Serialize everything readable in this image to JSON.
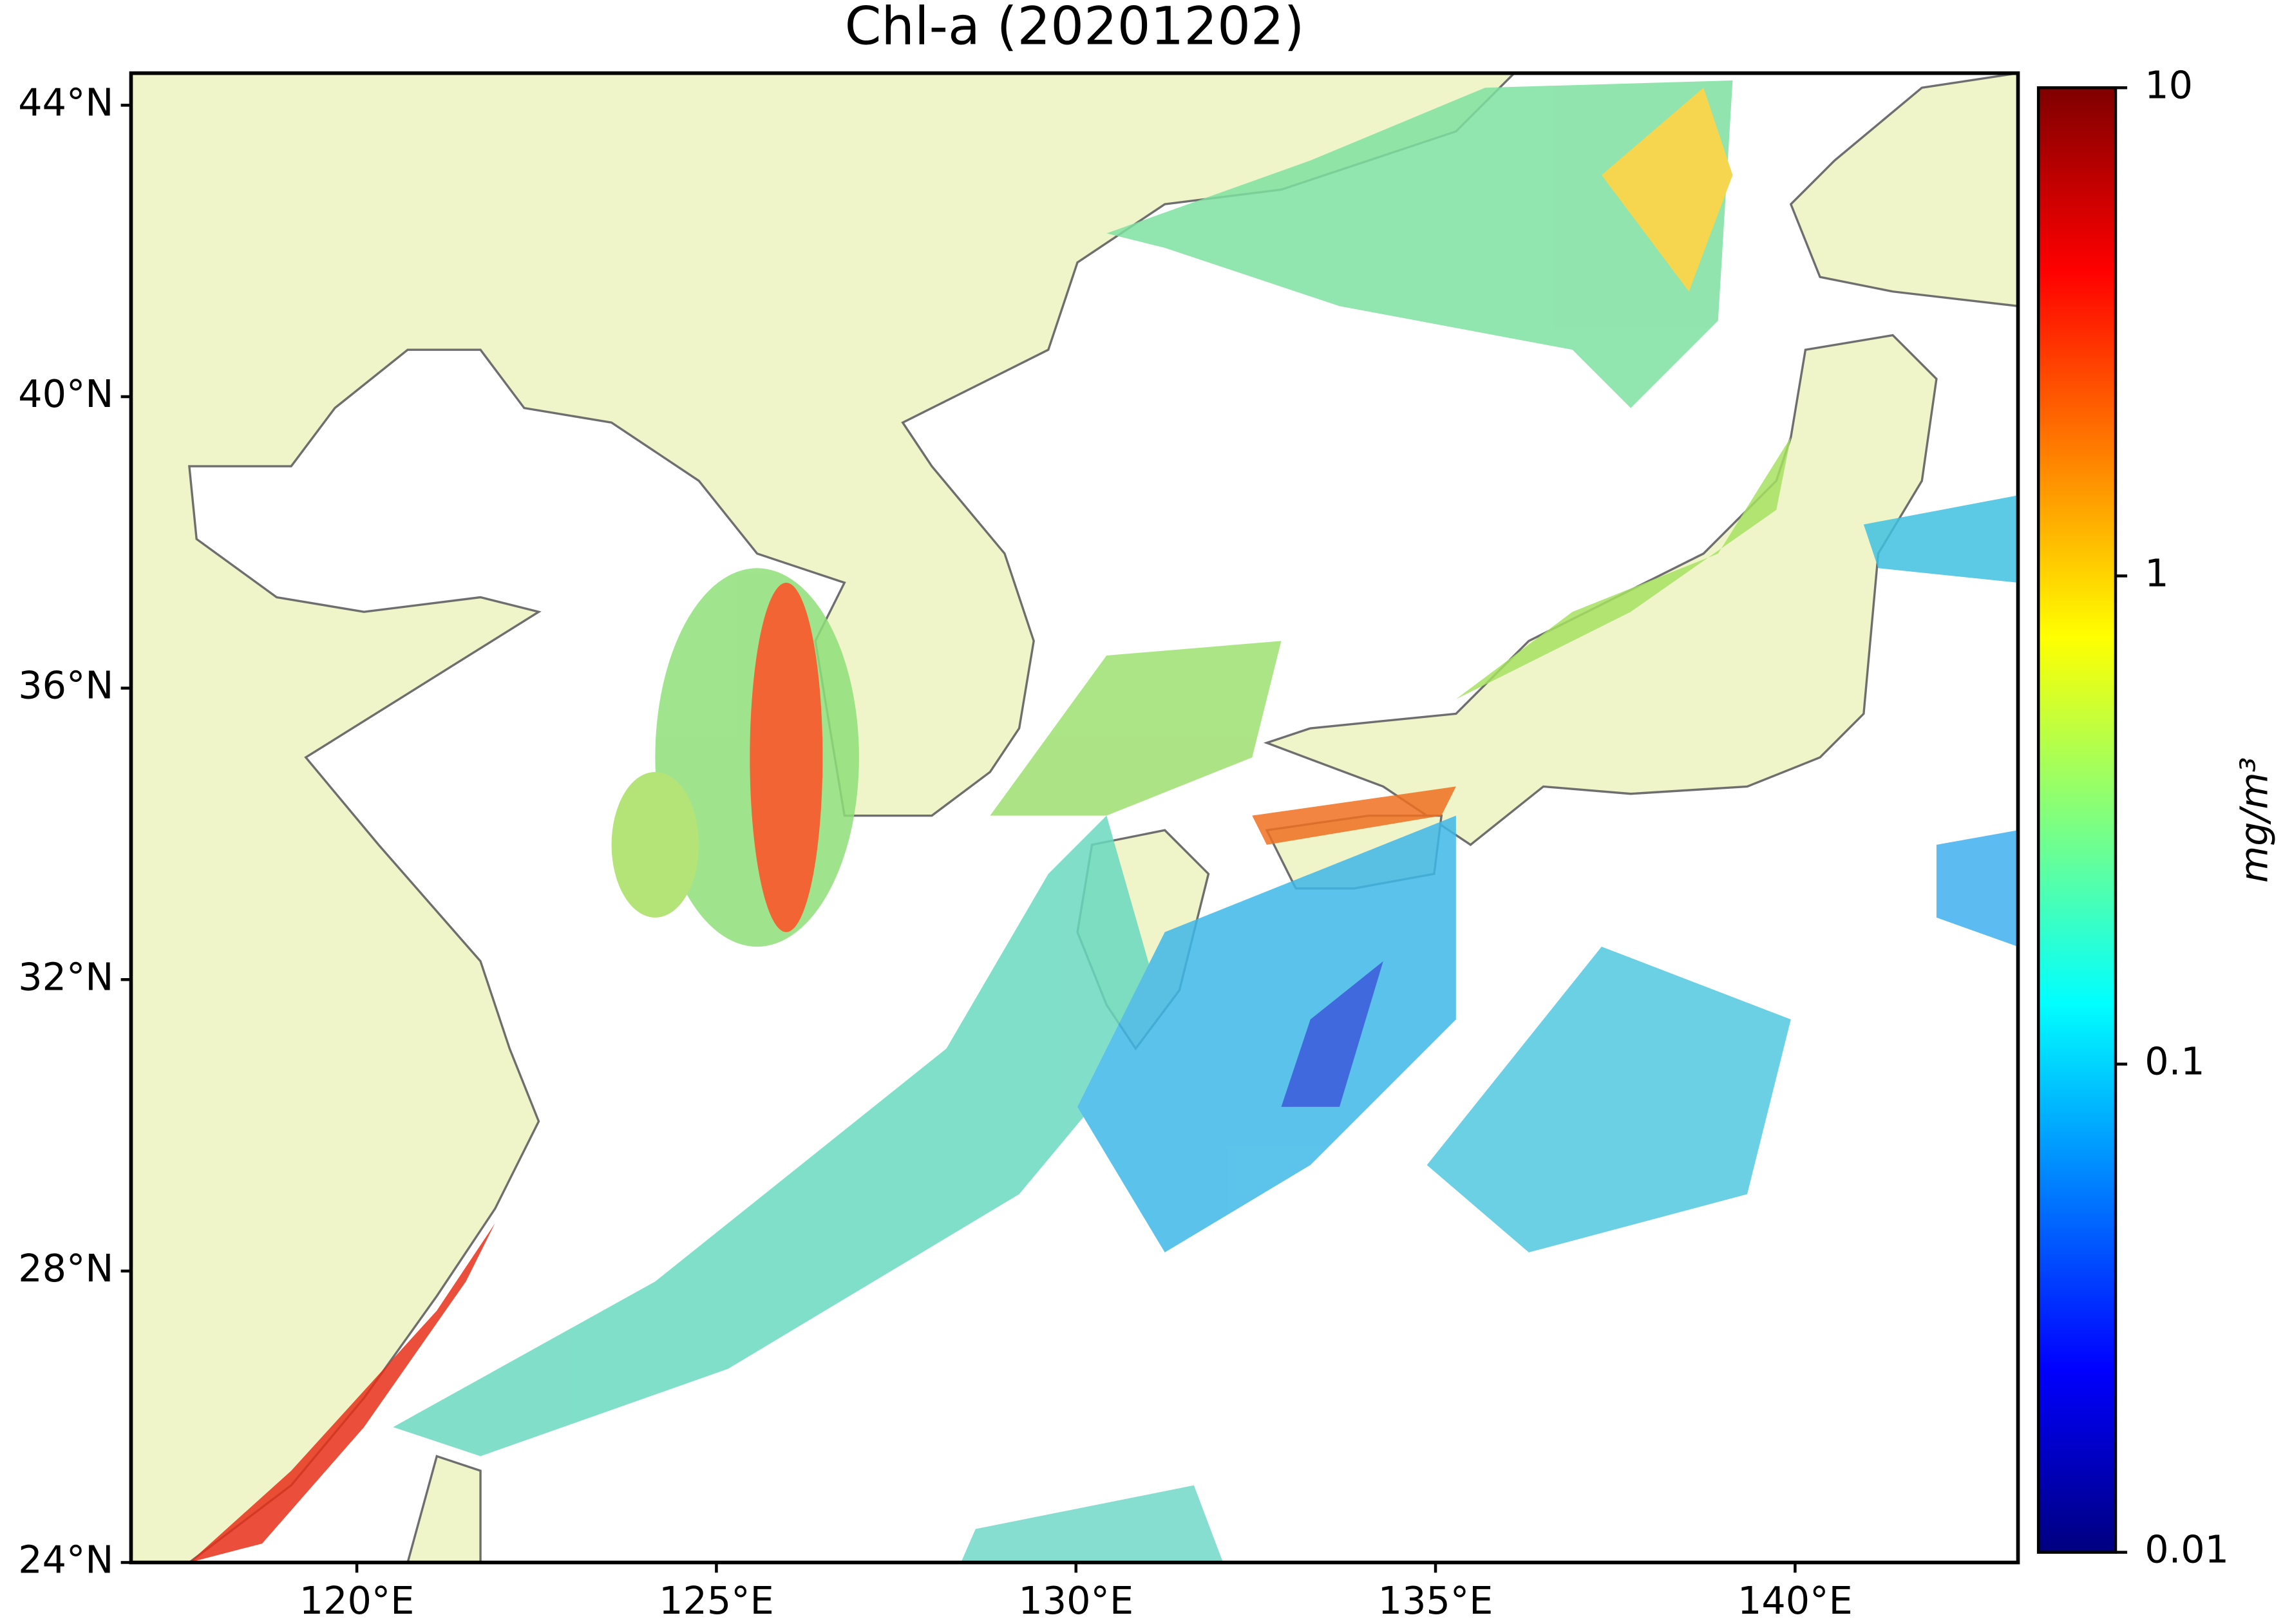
{
  "chart_data": {
    "type": "map",
    "title": "Chl-a (20201202)",
    "xlim": [
      116.86,
      143.1
    ],
    "ylim": [
      24,
      44.44
    ],
    "xticks": [
      {
        "value": 120,
        "label": "120°E"
      },
      {
        "value": 125,
        "label": "125°E"
      },
      {
        "value": 130,
        "label": "130°E"
      },
      {
        "value": 135,
        "label": "135°E"
      },
      {
        "value": 140,
        "label": "140°E"
      }
    ],
    "yticks": [
      {
        "value": 24,
        "label": "24°N"
      },
      {
        "value": 28,
        "label": "28°N"
      },
      {
        "value": 32,
        "label": "32°N"
      },
      {
        "value": 36,
        "label": "36°N"
      },
      {
        "value": 40,
        "label": "40°N"
      },
      {
        "value": 44,
        "label": "44°N"
      }
    ],
    "colorbar": {
      "label": "mg/m³",
      "log_scale": true,
      "colormap": "jet",
      "clim": [
        0.01,
        10
      ],
      "ticks": [
        0.01,
        0.1,
        1,
        10
      ]
    }
  }
}
